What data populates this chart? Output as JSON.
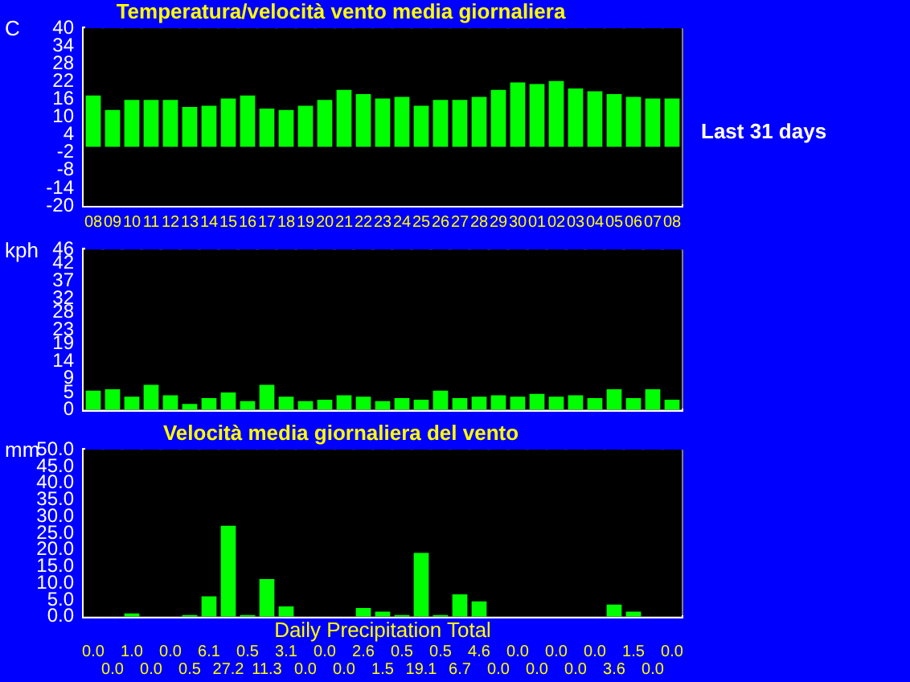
{
  "chart_data": [
    {
      "type": "bar",
      "title": "Temperatura/velocità vento media giornaliera",
      "ylabel": "C",
      "categories": [
        "08",
        "09",
        "10",
        "11",
        "12",
        "13",
        "14",
        "15",
        "16",
        "17",
        "18",
        "19",
        "20",
        "21",
        "22",
        "23",
        "24",
        "25",
        "26",
        "27",
        "28",
        "29",
        "30",
        "01",
        "02",
        "03",
        "04",
        "05",
        "06",
        "07",
        "08"
      ],
      "values": [
        17.3,
        12.4,
        15.8,
        15.8,
        15.8,
        13.4,
        13.8,
        16.3,
        17.3,
        12.9,
        12.4,
        13.8,
        15.8,
        19.2,
        17.8,
        16.3,
        16.8,
        13.8,
        15.8,
        15.8,
        16.8,
        19.2,
        21.7,
        21.2,
        22.2,
        19.7,
        18.7,
        17.8,
        16.8,
        16.3,
        16.3
      ],
      "color": "#00ff00",
      "ylim": [
        -20,
        40
      ],
      "yticks": [
        -20,
        -14,
        -8,
        -2,
        4,
        10,
        16,
        22,
        28,
        34,
        40
      ],
      "grid": "x",
      "annotations": [
        "Last 31 days"
      ]
    },
    {
      "type": "bar",
      "ylabel": "kph",
      "categories": [
        "08",
        "09",
        "10",
        "11",
        "12",
        "13",
        "14",
        "15",
        "16",
        "17",
        "18",
        "19",
        "20",
        "21",
        "22",
        "23",
        "24",
        "25",
        "26",
        "27",
        "28",
        "29",
        "30",
        "01",
        "02",
        "03",
        "04",
        "05",
        "06",
        "07",
        "08"
      ],
      "values": [
        5.5,
        5.9,
        3.8,
        7.2,
        4.2,
        1.7,
        3.4,
        5.0,
        2.5,
        7.2,
        3.8,
        2.5,
        2.9,
        4.2,
        3.8,
        2.5,
        3.4,
        2.9,
        5.5,
        3.4,
        3.8,
        4.2,
        3.8,
        4.6,
        3.8,
        4.2,
        3.4,
        5.9,
        3.4,
        5.9,
        2.9
      ],
      "color": "#00ff00",
      "ylim": [
        0,
        46
      ],
      "yticks": [
        0,
        5,
        9,
        14,
        19,
        23,
        28,
        32,
        37,
        42,
        46
      ],
      "grid": "x",
      "tick_labels": "y"
    },
    {
      "type": "bar",
      "title": "Velocità media giornaliera del vento",
      "xlabel": "Daily Precipitation Total",
      "ylabel": "mm",
      "categories": [
        "08",
        "09",
        "10",
        "11",
        "12",
        "13",
        "14",
        "15",
        "16",
        "17",
        "18",
        "19",
        "20",
        "21",
        "22",
        "23",
        "24",
        "25",
        "26",
        "27",
        "28",
        "29",
        "30",
        "01",
        "02",
        "03",
        "04",
        "05",
        "06",
        "07",
        "08"
      ],
      "values": [
        0.0,
        0.0,
        1.0,
        0.0,
        0.0,
        0.5,
        6.1,
        27.2,
        0.5,
        11.3,
        3.1,
        0.0,
        0.0,
        0.0,
        2.6,
        1.5,
        0.5,
        19.1,
        0.5,
        6.7,
        4.6,
        0.0,
        0.0,
        0.0,
        0.0,
        0.0,
        0.0,
        3.6,
        1.5,
        0.0,
        0.0
      ],
      "value_labels": [
        "0.0",
        "0.0",
        "1.0",
        "0.0",
        "0.0",
        "0.5",
        "6.1",
        "27.2",
        "0.5",
        "11.3",
        "3.1",
        "0.0",
        "0.0",
        "0.0",
        "2.6",
        "1.5",
        "0.5",
        "19.1",
        "0.5",
        "6.7",
        "4.6",
        "0.0",
        "0.0",
        "0.0",
        "0.0",
        "0.0",
        "0.0",
        "3.6",
        "1.5",
        "0.0",
        "0.0"
      ],
      "color": "#00ff00",
      "ylim": [
        0,
        50
      ],
      "yticks": [
        {
          "value": 0,
          "label": "0.0"
        },
        {
          "value": 5,
          "label": "5.0"
        },
        {
          "value": 10,
          "label": "10.0"
        },
        {
          "value": 15,
          "label": "15.0"
        },
        {
          "value": 20,
          "label": "20.0"
        },
        {
          "value": 25,
          "label": "25.0"
        },
        {
          "value": 30,
          "label": "30.0"
        },
        {
          "value": 35,
          "label": "35.0"
        },
        {
          "value": 40,
          "label": "40.0"
        },
        {
          "value": 45,
          "label": "45.0"
        },
        {
          "value": 50,
          "label": "50.0"
        }
      ],
      "grid": "x",
      "tick_labels": "y"
    }
  ]
}
